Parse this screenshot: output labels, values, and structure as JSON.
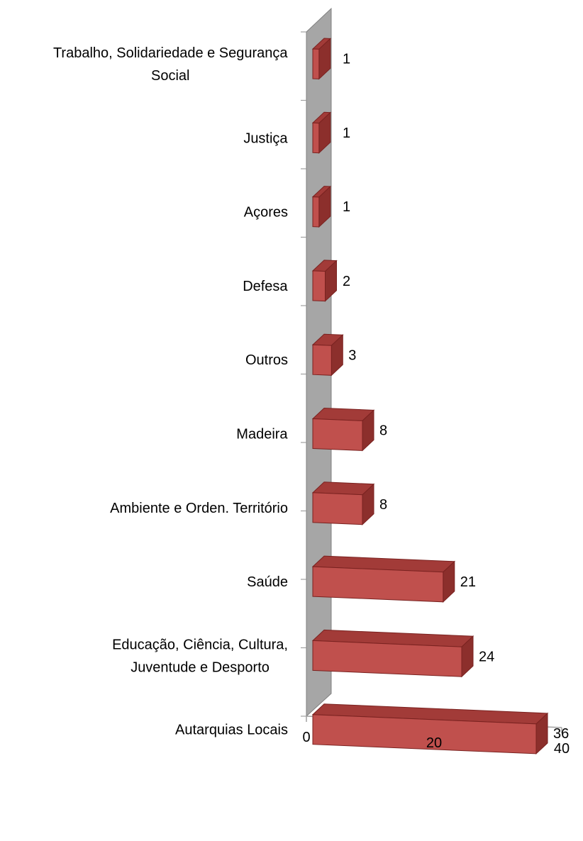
{
  "chart_data": {
    "type": "bar",
    "orientation": "horizontal",
    "style": "3d",
    "categories": [
      "Trabalho, Solidariedade e Segurança Social",
      "Justiça",
      "Açores",
      "Defesa",
      "Outros",
      "Madeira",
      "Ambiente e Orden. Território",
      "Saúde",
      "Educação, Ciência, Cultura, Juventude e Desporto",
      "Autarquias Locais"
    ],
    "category_lines": [
      [
        "Trabalho, Solidariedade e Segurança",
        "Social"
      ],
      [
        "Justiça"
      ],
      [
        "Açores"
      ],
      [
        "Defesa"
      ],
      [
        "Outros"
      ],
      [
        "Madeira"
      ],
      [
        "Ambiente e Orden. Território"
      ],
      [
        "Saúde"
      ],
      [
        "Educação, Ciência, Cultura,",
        "Juventude e Desporto"
      ],
      [
        "Autarquias Locais"
      ]
    ],
    "values": [
      1,
      1,
      1,
      2,
      3,
      8,
      8,
      21,
      24,
      36
    ],
    "data_labels": [
      "1",
      "1",
      "1",
      "2",
      "3",
      "8",
      "8",
      "21",
      "24",
      "36"
    ],
    "x_ticks": [
      "0",
      "20",
      "40"
    ],
    "xlim": [
      0,
      40
    ],
    "title": "",
    "xlabel": "",
    "ylabel": "",
    "grid": false,
    "legend": "none",
    "colors": {
      "bar_front": "#c0504d",
      "bar_top": "#a23b38",
      "bar_side": "#8c2f2c",
      "bar_edge": "#7a2220",
      "wall": "#a6a6a6",
      "wall_edge": "#808080",
      "axis": "#a0a0a0"
    }
  }
}
